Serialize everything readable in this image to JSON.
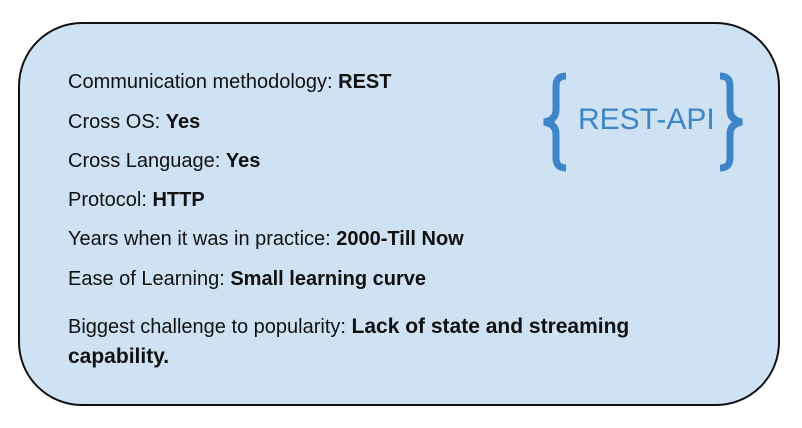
{
  "card": {
    "background": "#cfe2f3",
    "border_color": "#111111",
    "rows": [
      {
        "label": "Communication methodology: ",
        "value": "REST"
      },
      {
        "label": "Cross OS: ",
        "value": "Yes"
      },
      {
        "label": "Cross Language: ",
        "value": "Yes"
      },
      {
        "label": "Protocol: ",
        "value": "HTTP"
      },
      {
        "label": "Years when it was in practice: ",
        "value": "2000-Till Now"
      },
      {
        "label": "Ease of Learning: ",
        "value": "Small learning curve"
      },
      {
        "label": "Biggest challenge to popularity: ",
        "value": "Lack of state and streaming capability."
      }
    ]
  },
  "logo": {
    "text": "REST-API",
    "color": "#3d85c6",
    "icon": "curly-braces-icon"
  }
}
